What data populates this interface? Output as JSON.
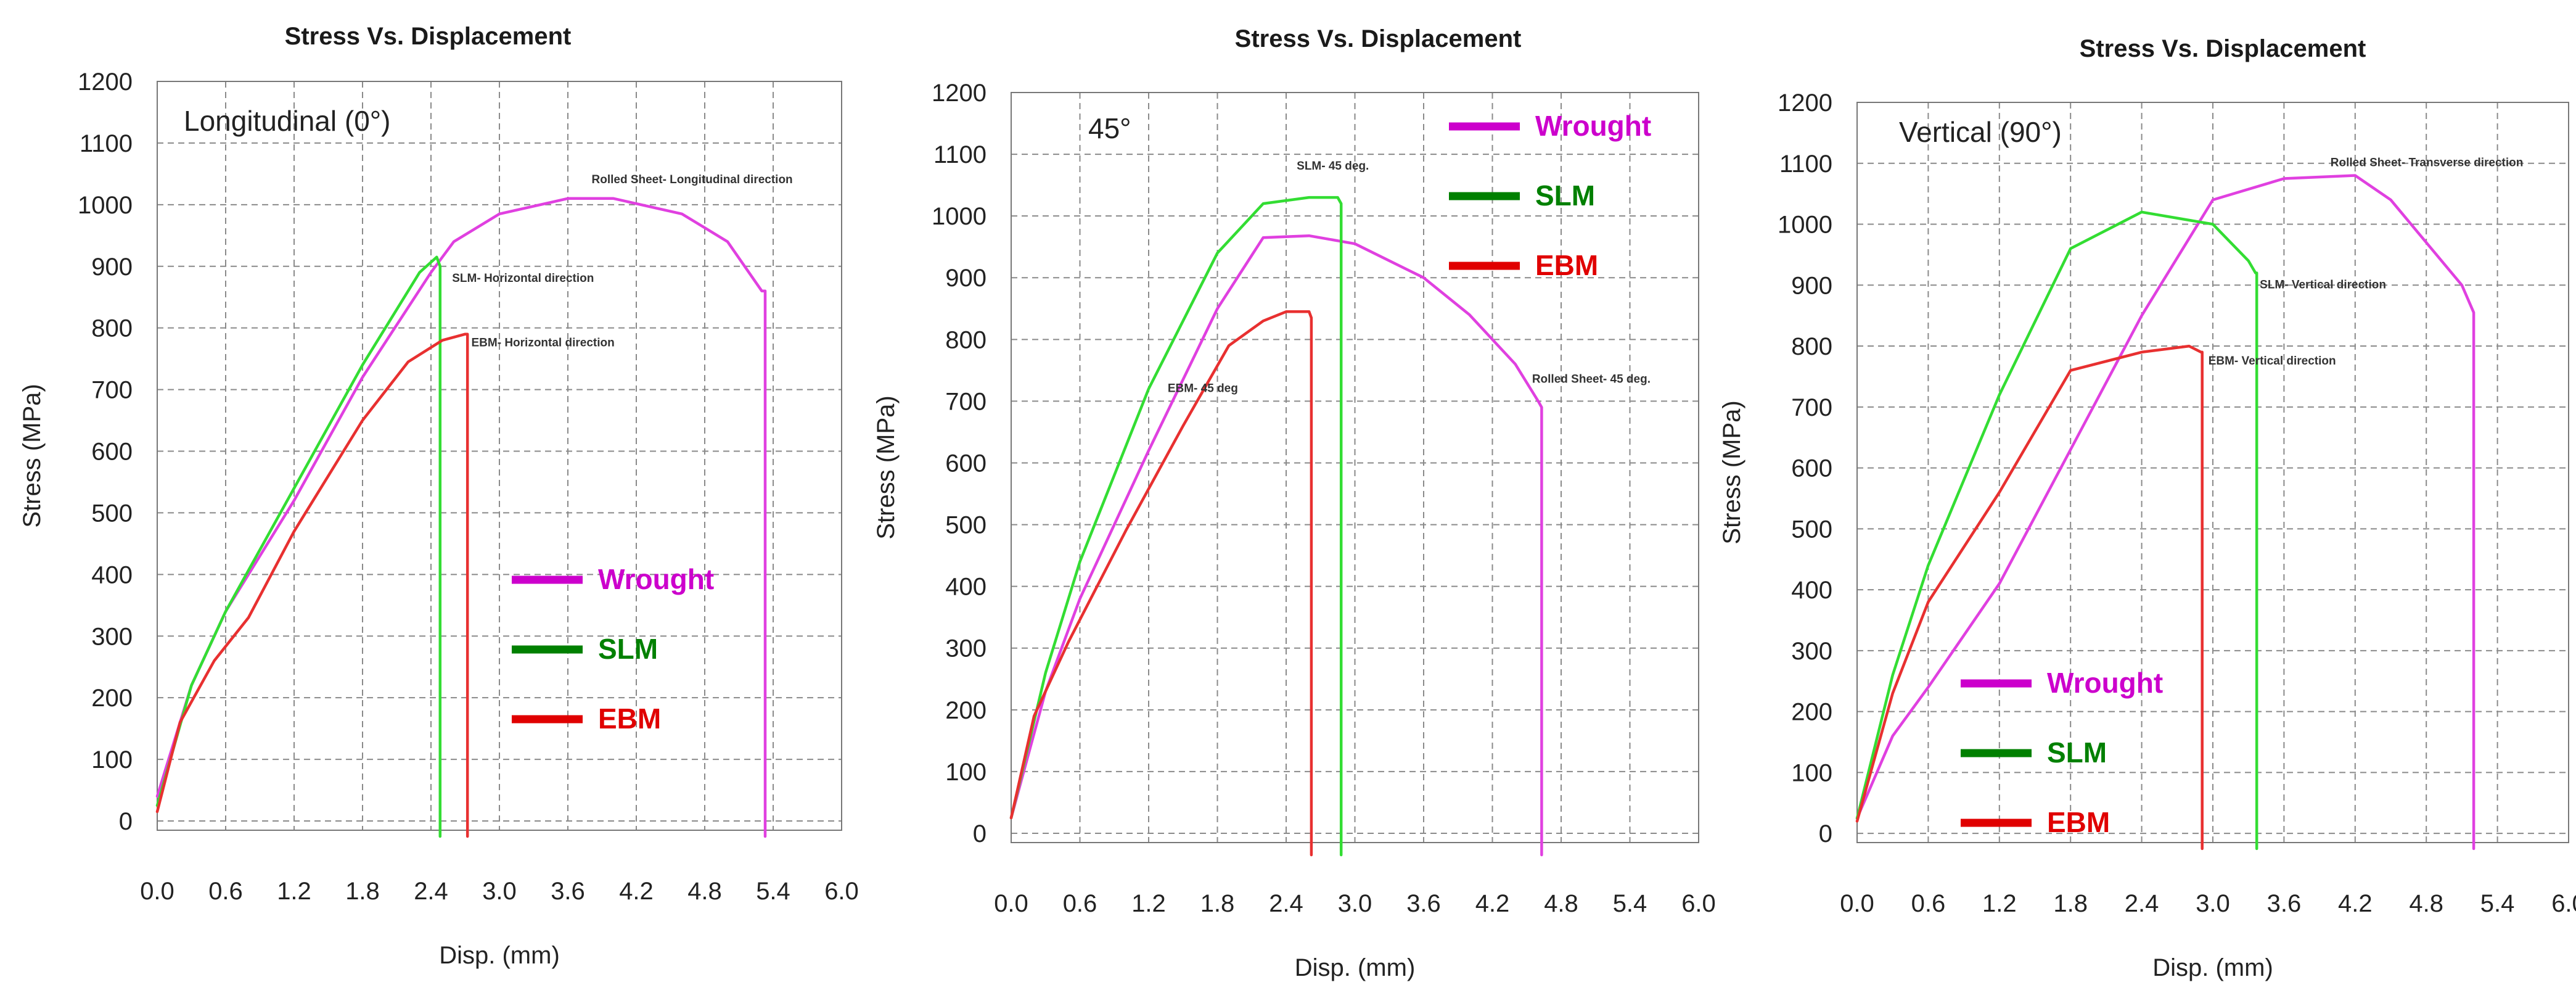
{
  "chart_data": [
    {
      "type": "line",
      "title": "Stress Vs. Displacement",
      "panel_label": "Longitudinal (0°)",
      "xlabel": "Disp. (mm)",
      "ylabel": "Stress (MPa)",
      "xlim": [
        0,
        6
      ],
      "ylim": [
        0,
        1200
      ],
      "xticks": [
        "0.0",
        "0.6",
        "1.2",
        "1.8",
        "2.4",
        "3.0",
        "3.6",
        "4.2",
        "4.8",
        "5.4",
        "6.0"
      ],
      "yticks": [
        "0",
        "100",
        "200",
        "300",
        "400",
        "500",
        "600",
        "700",
        "800",
        "900",
        "1000",
        "1100",
        "1200"
      ],
      "legend": [
        {
          "name": "Wrought",
          "color": "#cc00cc"
        },
        {
          "name": "SLM",
          "color": "#008000"
        },
        {
          "name": "EBM",
          "color": "#e00000"
        }
      ],
      "series": [
        {
          "name": "Wrought",
          "color": "#e040e0",
          "annotation": "Rolled Sheet- Longitudinal direction",
          "x": [
            0,
            0.3,
            0.6,
            1.2,
            1.8,
            2.4,
            2.6,
            3.0,
            3.6,
            4.0,
            4.6,
            5.0,
            5.3,
            5.33,
            5.33
          ],
          "y": [
            40,
            220,
            340,
            520,
            720,
            890,
            940,
            985,
            1010,
            1010,
            985,
            940,
            860,
            860,
            -25
          ]
        },
        {
          "name": "SLM",
          "color": "#33dd33",
          "annotation": "SLM- Horizontal direction",
          "x": [
            0,
            0.3,
            0.6,
            1.2,
            1.8,
            2.3,
            2.45,
            2.48,
            2.48
          ],
          "y": [
            25,
            220,
            340,
            540,
            740,
            890,
            915,
            900,
            -25
          ]
        },
        {
          "name": "EBM",
          "color": "#e83030",
          "annotation": "EBM- Horizontal direction",
          "x": [
            0,
            0.2,
            0.5,
            0.8,
            1.2,
            1.8,
            2.2,
            2.5,
            2.7,
            2.72,
            2.72
          ],
          "y": [
            15,
            160,
            260,
            330,
            470,
            650,
            745,
            780,
            790,
            790,
            -25
          ]
        }
      ]
    },
    {
      "type": "line",
      "title": "Stress Vs. Displacement",
      "panel_label": "45°",
      "xlabel": "Disp. (mm)",
      "ylabel": "Stress (MPa)",
      "xlim": [
        0,
        6
      ],
      "ylim": [
        0,
        1200
      ],
      "xticks": [
        "0.0",
        "0.6",
        "1.2",
        "1.8",
        "2.4",
        "3.0",
        "3.6",
        "4.2",
        "4.8",
        "5.4",
        "6.0"
      ],
      "yticks": [
        "0",
        "100",
        "200",
        "300",
        "400",
        "500",
        "600",
        "700",
        "800",
        "900",
        "1000",
        "1100",
        "1200"
      ],
      "legend": [
        {
          "name": "Wrought",
          "color": "#cc00cc"
        },
        {
          "name": "SLM",
          "color": "#008000"
        },
        {
          "name": "EBM",
          "color": "#e00000"
        }
      ],
      "series": [
        {
          "name": "Wrought",
          "color": "#e040e0",
          "annotation": "Rolled Sheet- 45 deg.",
          "x": [
            0,
            0.3,
            0.6,
            1.2,
            1.8,
            2.2,
            2.6,
            3.0,
            3.6,
            4.0,
            4.4,
            4.6,
            4.63,
            4.63
          ],
          "y": [
            25,
            230,
            380,
            620,
            850,
            965,
            968,
            955,
            900,
            840,
            760,
            700,
            690,
            -35
          ]
        },
        {
          "name": "SLM",
          "color": "#33dd33",
          "annotation": "SLM- 45 deg.",
          "x": [
            0,
            0.3,
            0.6,
            1.2,
            1.8,
            2.2,
            2.6,
            2.85,
            2.88,
            2.88
          ],
          "y": [
            25,
            260,
            440,
            720,
            940,
            1020,
            1030,
            1030,
            1020,
            -35
          ]
        },
        {
          "name": "EBM",
          "color": "#e83030",
          "annotation": "EBM- 45 deg",
          "x": [
            0,
            0.2,
            0.5,
            1.0,
            1.5,
            1.9,
            2.2,
            2.4,
            2.6,
            2.62,
            2.62
          ],
          "y": [
            25,
            190,
            310,
            490,
            660,
            790,
            830,
            845,
            845,
            835,
            -35
          ]
        }
      ]
    },
    {
      "type": "line",
      "title": "Stress Vs. Displacement",
      "panel_label": "Vertical (90°)",
      "xlabel": "Disp. (mm)",
      "ylabel": "Stress (MPa)",
      "xlim": [
        0,
        6
      ],
      "ylim": [
        0,
        1200
      ],
      "xticks": [
        "0.0",
        "0.6",
        "1.2",
        "1.8",
        "2.4",
        "3.0",
        "3.6",
        "4.2",
        "4.8",
        "5.4",
        "6.0"
      ],
      "yticks": [
        "0",
        "100",
        "200",
        "300",
        "400",
        "500",
        "600",
        "700",
        "800",
        "900",
        "1000",
        "1100",
        "1200"
      ],
      "legend": [
        {
          "name": "Wrought",
          "color": "#cc00cc"
        },
        {
          "name": "SLM",
          "color": "#008000"
        },
        {
          "name": "EBM",
          "color": "#e00000"
        }
      ],
      "series": [
        {
          "name": "Wrought",
          "color": "#e040e0",
          "annotation": "Rolled Sheet- Transverse direction",
          "x": [
            0,
            0.3,
            0.6,
            1.2,
            1.8,
            2.4,
            3.0,
            3.6,
            4.2,
            4.5,
            4.8,
            5.1,
            5.2,
            5.2
          ],
          "y": [
            25,
            160,
            240,
            410,
            630,
            850,
            1040,
            1075,
            1080,
            1040,
            970,
            900,
            855,
            -25
          ]
        },
        {
          "name": "SLM",
          "color": "#33dd33",
          "annotation": "SLM- Vertical direction",
          "x": [
            0,
            0.3,
            0.6,
            1.2,
            1.8,
            2.4,
            3.0,
            3.3,
            3.36,
            3.37,
            3.37
          ],
          "y": [
            25,
            260,
            440,
            720,
            960,
            1020,
            1000,
            940,
            920,
            920,
            -25
          ]
        },
        {
          "name": "EBM",
          "color": "#e83030",
          "annotation": "EBM- Vertical direction",
          "x": [
            0,
            0.3,
            0.6,
            1.2,
            1.8,
            2.4,
            2.8,
            2.9,
            2.91,
            2.91
          ],
          "y": [
            20,
            230,
            380,
            560,
            760,
            790,
            800,
            790,
            790,
            -25
          ]
        }
      ]
    }
  ]
}
